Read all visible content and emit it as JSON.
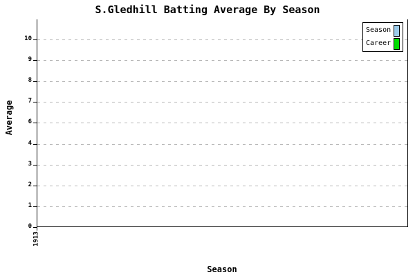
{
  "title": "S.Gledhill Batting Average By Season",
  "axes": {
    "y_label": "Average",
    "x_label": "Season",
    "y_tick_labels_top_to_bottom": [
      "10",
      "9",
      "8",
      "7",
      "6",
      "4",
      "3",
      "2",
      "1",
      "0"
    ],
    "x_tick_labels": [
      "1913"
    ]
  },
  "legend": {
    "items": [
      {
        "label": "Season",
        "color": "#9CCBEA"
      },
      {
        "label": "Career",
        "color": "#00DC00"
      }
    ]
  },
  "chart_data": {
    "type": "bar",
    "title": "S.Gledhill Batting Average By Season",
    "xlabel": "Season",
    "ylabel": "Average",
    "categories": [
      "1913"
    ],
    "series": [
      {
        "name": "Season",
        "color": "#9CCBEA",
        "values": []
      },
      {
        "name": "Career",
        "color": "#00DC00",
        "values": []
      }
    ],
    "ylim": [
      0,
      10.8
    ],
    "y_tick_values_as_shown": [
      0,
      1,
      2,
      3,
      4,
      6,
      7,
      8,
      9,
      10
    ],
    "grid": "horizontal dashed",
    "legend_position": "top-right"
  },
  "colors": {
    "background": "#FFFFFF",
    "axis": "#000000",
    "gridline": "#B4B4B4",
    "text": "#000000",
    "legend_season_swatch": "#9CCBEA",
    "legend_career_swatch": "#00DC00"
  }
}
